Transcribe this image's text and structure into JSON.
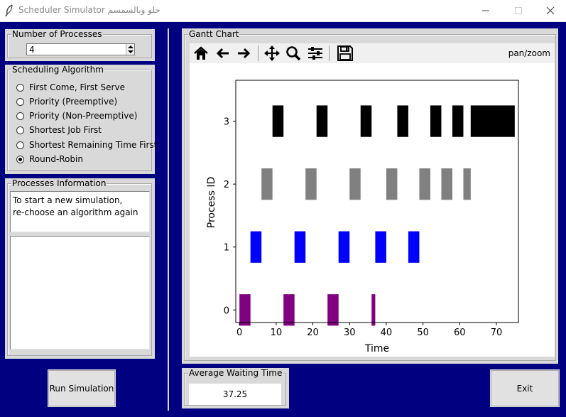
{
  "window": {
    "title": "Scheduler Simulator حلو وبالسمسم",
    "controls": [
      "minimize",
      "maximize",
      "close"
    ]
  },
  "left_panel": {
    "num_processes": {
      "label": "Number of Processes",
      "value": "4"
    },
    "algorithm": {
      "label": "Scheduling Algorithm",
      "options": [
        {
          "label": "First Come, First Serve",
          "selected": false
        },
        {
          "label": "Priority (Preemptive)",
          "selected": false
        },
        {
          "label": "Priority (Non-Preemptive)",
          "selected": false
        },
        {
          "label": "Shortest Job First",
          "selected": false
        },
        {
          "label": "Shortest Remaining Time First",
          "selected": false
        },
        {
          "label": "Round-Robin",
          "selected": true
        }
      ]
    },
    "info": {
      "label": "Processes Information",
      "line1": "To start a new simulation,",
      "line2": "re-choose an algorithm again",
      "details": ""
    },
    "run_button": "Run Simulation"
  },
  "gantt": {
    "label": "Gantt Chart",
    "toolbar": {
      "icons": [
        "home-icon",
        "back-arrow-icon",
        "forward-arrow-icon",
        "pan-icon",
        "zoom-icon",
        "configure-subplots-icon",
        "save-icon"
      ],
      "mode": "pan/zoom"
    }
  },
  "avg_wait": {
    "label": "Average Waiting Time",
    "value": "37.25"
  },
  "exit_button": "Exit",
  "chart_data": {
    "type": "bar",
    "orientation": "horizontal-broken",
    "title": "",
    "xlabel": "Time",
    "ylabel": "Process ID",
    "xlim": [
      -1,
      76
    ],
    "ylim": [
      -0.2,
      3.65
    ],
    "xticks": [
      0,
      10,
      20,
      30,
      40,
      50,
      60,
      70
    ],
    "yticks": [
      0,
      1,
      2,
      3
    ],
    "grid": false,
    "series": [
      {
        "process": 0,
        "color": "#800080",
        "segments": [
          [
            0,
            3
          ],
          [
            12,
            15
          ],
          [
            24,
            27
          ],
          [
            36,
            37
          ]
        ]
      },
      {
        "process": 1,
        "color": "#0000ff",
        "segments": [
          [
            3,
            6
          ],
          [
            15,
            18
          ],
          [
            27,
            30
          ],
          [
            37,
            40
          ],
          [
            46,
            49
          ]
        ]
      },
      {
        "process": 2,
        "color": "#808080",
        "segments": [
          [
            6,
            9
          ],
          [
            18,
            21
          ],
          [
            30,
            33
          ],
          [
            40,
            43
          ],
          [
            49,
            52
          ],
          [
            55,
            58
          ],
          [
            61,
            63
          ]
        ]
      },
      {
        "process": 3,
        "color": "#000000",
        "segments": [
          [
            9,
            12
          ],
          [
            21,
            24
          ],
          [
            33,
            36
          ],
          [
            43,
            46
          ],
          [
            52,
            55
          ],
          [
            58,
            61
          ],
          [
            63,
            75
          ]
        ]
      }
    ]
  }
}
